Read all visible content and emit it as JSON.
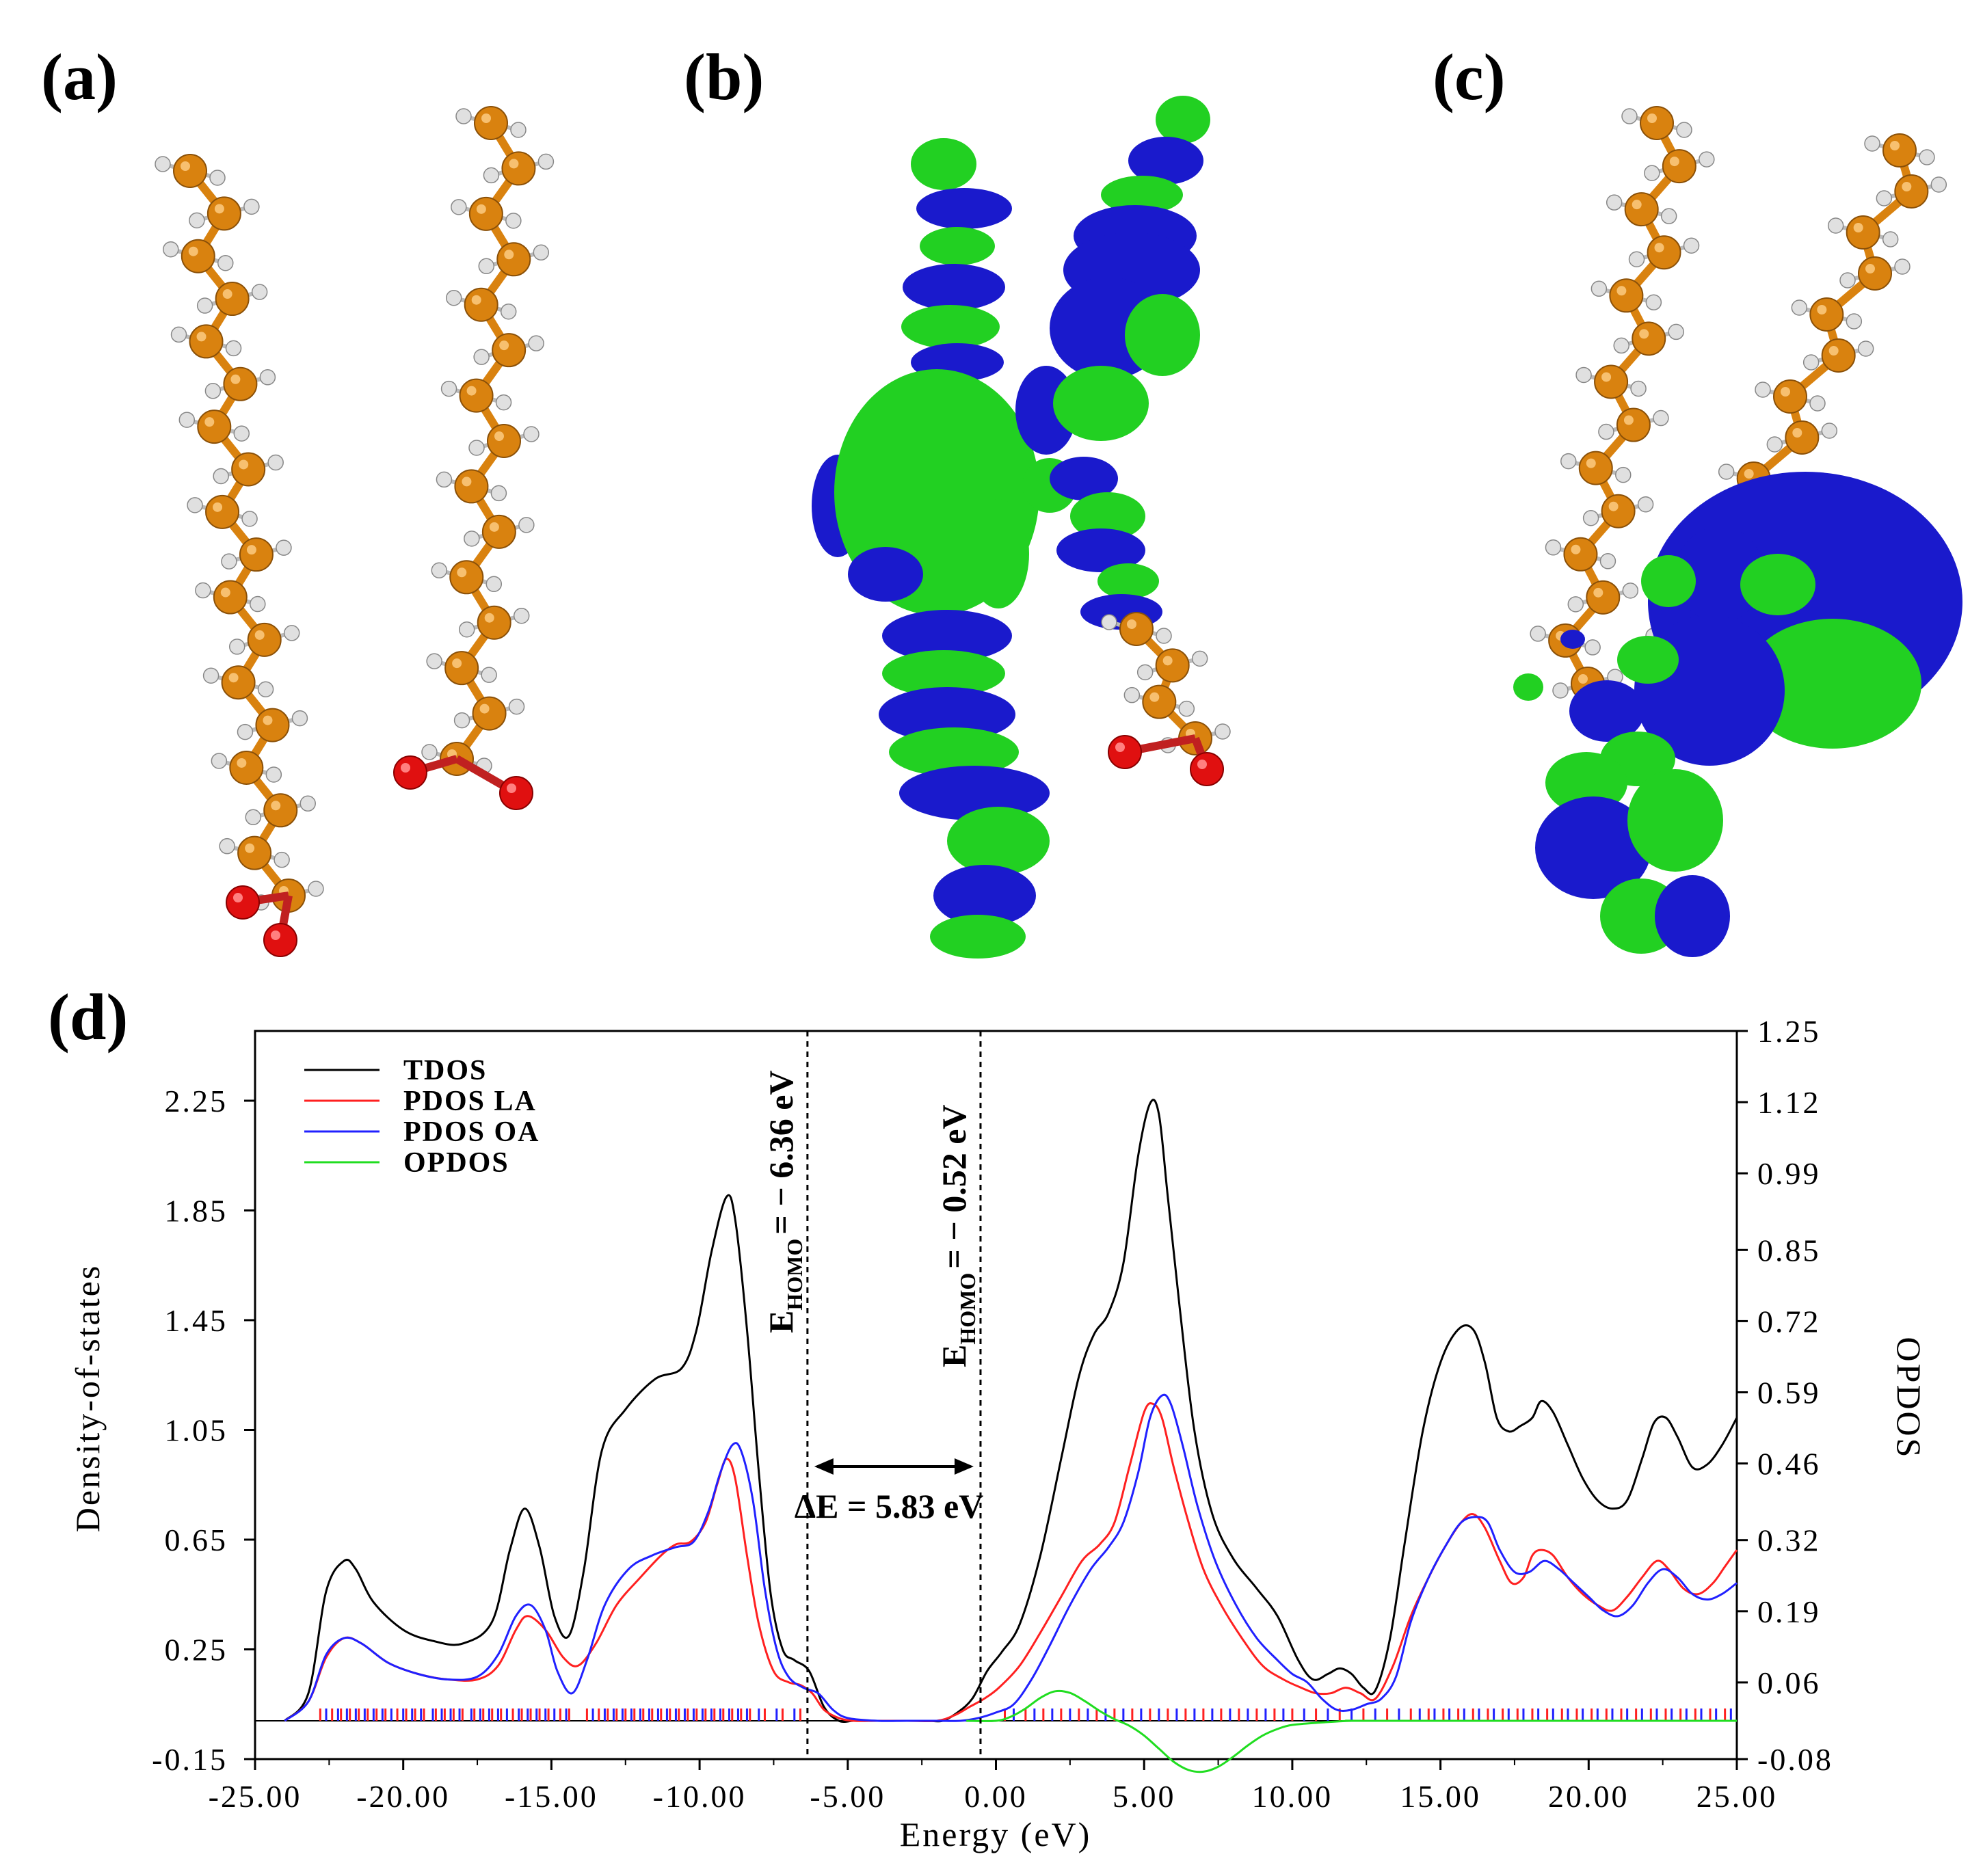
{
  "panels": {
    "a": {
      "label": "(a)"
    },
    "b": {
      "label": "(b)"
    },
    "c": {
      "label": "(c)"
    },
    "d": {
      "label": "(d)"
    }
  },
  "colors": {
    "carbon": "#d9820f",
    "hydrogen": "#e0e0e0",
    "oxygen": "#e01010",
    "orbital_positive": "#22d022",
    "orbital_negative": "#1a1acc"
  },
  "chart_data": {
    "type": "line",
    "xlabel": "Energy (eV)",
    "ylabel": "Density-of-states",
    "y2label": "OPDOS",
    "xlim": [
      -25,
      25
    ],
    "ylim": [
      -0.15,
      2.55
    ],
    "y2lim": [
      -0.08,
      1.25
    ],
    "x_ticks": [
      "-25.00",
      "-20.00",
      "-15.00",
      "-10.00",
      "-5.00",
      "0.00",
      "5.00",
      "10.00",
      "15.00",
      "20.00",
      "25.00"
    ],
    "x_tick_values": [
      -25,
      -20,
      -15,
      -10,
      -5,
      0,
      5,
      10,
      15,
      20,
      25
    ],
    "y_ticks": [
      "-0.15",
      "0.25",
      "0.65",
      "1.05",
      "1.45",
      "1.85",
      "2.25"
    ],
    "y_tick_values": [
      -0.15,
      0.25,
      0.65,
      1.05,
      1.45,
      1.85,
      2.25
    ],
    "y2_ticks": [
      "-0.08",
      "0.06",
      "0.19",
      "0.32",
      "0.46",
      "0.59",
      "0.72",
      "0.85",
      "0.99",
      "1.12",
      "1.25"
    ],
    "y2_tick_values": [
      -0.08,
      0.06,
      0.19,
      0.32,
      0.46,
      0.59,
      0.72,
      0.85,
      0.99,
      1.12,
      1.25
    ],
    "legend": [
      "TDOS",
      "PDOS LA",
      "PDOS OA",
      "OPDOS"
    ],
    "legend_position": "top-left",
    "series": [
      {
        "name": "TDOS",
        "color": "#000000",
        "axis": "left",
        "x": [
          -24,
          -23.2,
          -22.6,
          -22,
          -21.6,
          -21,
          -20,
          -19,
          -18,
          -17,
          -16.4,
          -15.9,
          -15.4,
          -14.9,
          -14.4,
          -13.9,
          -13.3,
          -12.5,
          -11.5,
          -10.6,
          -10.1,
          -9.6,
          -9.1,
          -8.8,
          -8.4,
          -8.0,
          -7.6,
          -7.2,
          -6.8,
          -6.3,
          -5.8,
          -5.3,
          -4.8,
          -4.3,
          -3.8,
          -3.3,
          -2.8,
          -2.3,
          -1.8,
          -1.3,
          -0.8,
          -0.3,
          0.2,
          0.8,
          1.5,
          2.2,
          2.8,
          3.3,
          3.8,
          4.3,
          4.8,
          5.2,
          5.5,
          5.8,
          6.2,
          6.7,
          7.3,
          8.0,
          8.8,
          9.5,
          10.2,
          10.7,
          11.2,
          11.6,
          12.0,
          12.4,
          12.8,
          13.3,
          13.8,
          14.4,
          15.0,
          15.6,
          16.1,
          16.5,
          16.9,
          17.3,
          17.7,
          18.1,
          18.4,
          18.8,
          19.3,
          19.8,
          20.3,
          20.8,
          21.3,
          21.8,
          22.2,
          22.6,
          23.0,
          23.5,
          24.0,
          24.5,
          25.0
        ],
        "values": [
          0.0,
          0.1,
          0.47,
          0.58,
          0.55,
          0.43,
          0.33,
          0.29,
          0.28,
          0.36,
          0.62,
          0.77,
          0.63,
          0.38,
          0.31,
          0.55,
          0.98,
          1.13,
          1.24,
          1.28,
          1.42,
          1.7,
          1.9,
          1.82,
          1.42,
          0.9,
          0.46,
          0.26,
          0.22,
          0.18,
          0.05,
          0.0,
          0.0,
          0.0,
          0.0,
          0.0,
          0.0,
          0.0,
          0.0,
          0.03,
          0.08,
          0.18,
          0.25,
          0.35,
          0.6,
          0.95,
          1.25,
          1.4,
          1.48,
          1.66,
          2.05,
          2.24,
          2.2,
          1.9,
          1.5,
          1.05,
          0.75,
          0.59,
          0.48,
          0.38,
          0.22,
          0.15,
          0.17,
          0.19,
          0.17,
          0.12,
          0.11,
          0.3,
          0.65,
          1.05,
          1.3,
          1.42,
          1.42,
          1.3,
          1.1,
          1.05,
          1.07,
          1.1,
          1.16,
          1.12,
          1.0,
          0.88,
          0.8,
          0.77,
          0.8,
          0.95,
          1.08,
          1.1,
          1.03,
          0.92,
          0.93,
          1.0,
          1.1
        ]
      },
      {
        "name": "PDOS LA",
        "color": "#ff2020",
        "axis": "left",
        "x": [
          -24,
          -23.2,
          -22.6,
          -22,
          -21.4,
          -20.5,
          -19.5,
          -18.5,
          -17.5,
          -16.8,
          -16.2,
          -15.8,
          -15.2,
          -14.6,
          -14.1,
          -13.5,
          -12.8,
          -12,
          -11.3,
          -10.8,
          -10.3,
          -9.8,
          -9.4,
          -9.1,
          -8.8,
          -8.4,
          -8.0,
          -7.5,
          -7.0,
          -6.6,
          -6.2,
          -5.8,
          -5.3,
          -4.8,
          -4.0,
          -3.0,
          -2.0,
          -1.4,
          -0.9,
          -0.4,
          0.1,
          0.8,
          1.5,
          2.2,
          2.9,
          3.5,
          4.0,
          4.5,
          5.0,
          5.3,
          5.6,
          6.0,
          6.5,
          7.0,
          7.6,
          8.3,
          9.0,
          9.7,
          10.3,
          10.8,
          11.3,
          11.8,
          12.3,
          12.8,
          13.4,
          14.0,
          14.6,
          15.2,
          15.7,
          16.1,
          16.5,
          17.0,
          17.4,
          17.8,
          18.1,
          18.4,
          18.8,
          19.3,
          19.8,
          20.3,
          20.8,
          21.3,
          21.8,
          22.3,
          22.7,
          23.2,
          23.7,
          24.2,
          24.6,
          25.0
        ],
        "values": [
          0.0,
          0.07,
          0.23,
          0.3,
          0.28,
          0.21,
          0.17,
          0.15,
          0.15,
          0.2,
          0.33,
          0.38,
          0.33,
          0.23,
          0.2,
          0.28,
          0.42,
          0.52,
          0.6,
          0.64,
          0.65,
          0.72,
          0.86,
          0.95,
          0.88,
          0.6,
          0.35,
          0.18,
          0.14,
          0.13,
          0.1,
          0.04,
          0.01,
          0.0,
          0.0,
          0.0,
          0.0,
          0.02,
          0.05,
          0.08,
          0.12,
          0.2,
          0.32,
          0.45,
          0.58,
          0.64,
          0.72,
          0.92,
          1.12,
          1.15,
          1.1,
          0.92,
          0.72,
          0.55,
          0.42,
          0.3,
          0.2,
          0.15,
          0.12,
          0.1,
          0.1,
          0.12,
          0.1,
          0.08,
          0.2,
          0.38,
          0.52,
          0.64,
          0.72,
          0.75,
          0.7,
          0.58,
          0.5,
          0.52,
          0.6,
          0.62,
          0.6,
          0.52,
          0.46,
          0.42,
          0.4,
          0.45,
          0.52,
          0.58,
          0.55,
          0.48,
          0.46,
          0.5,
          0.56,
          0.62
        ]
      },
      {
        "name": "PDOS OA",
        "color": "#2020ff",
        "axis": "left",
        "x": [
          -24,
          -23.2,
          -22.6,
          -22,
          -21.4,
          -20.5,
          -19.5,
          -18.5,
          -17.5,
          -16.8,
          -16.2,
          -15.7,
          -15.2,
          -14.8,
          -14.3,
          -13.8,
          -13.2,
          -12.4,
          -11.6,
          -10.8,
          -10.2,
          -9.7,
          -9.3,
          -8.9,
          -8.6,
          -8.2,
          -7.8,
          -7.4,
          -7.0,
          -6.5,
          -6.0,
          -5.5,
          -5.0,
          -4.0,
          -3.0,
          -2.0,
          -1.2,
          -0.6,
          0.0,
          0.6,
          1.2,
          1.8,
          2.5,
          3.2,
          3.8,
          4.3,
          4.8,
          5.2,
          5.6,
          5.9,
          6.3,
          6.8,
          7.4,
          8.1,
          8.8,
          9.5,
          10.0,
          10.5,
          11.0,
          11.5,
          12.0,
          12.5,
          13.0,
          13.5,
          14.0,
          14.6,
          15.2,
          15.7,
          16.2,
          16.6,
          17.0,
          17.5,
          18.0,
          18.5,
          19.0,
          19.5,
          20.0,
          20.5,
          21.0,
          21.5,
          22.0,
          22.5,
          23.0,
          23.5,
          24.0,
          24.5,
          25.0
        ],
        "values": [
          0.0,
          0.07,
          0.24,
          0.3,
          0.28,
          0.21,
          0.17,
          0.15,
          0.16,
          0.24,
          0.38,
          0.42,
          0.33,
          0.18,
          0.1,
          0.22,
          0.42,
          0.55,
          0.6,
          0.63,
          0.65,
          0.76,
          0.9,
          1.0,
          0.98,
          0.8,
          0.48,
          0.26,
          0.16,
          0.12,
          0.1,
          0.04,
          0.01,
          0.0,
          0.0,
          0.0,
          0.0,
          0.01,
          0.03,
          0.06,
          0.15,
          0.27,
          0.42,
          0.55,
          0.63,
          0.72,
          0.9,
          1.1,
          1.18,
          1.15,
          1.0,
          0.78,
          0.58,
          0.42,
          0.3,
          0.22,
          0.17,
          0.14,
          0.08,
          0.04,
          0.04,
          0.06,
          0.08,
          0.16,
          0.36,
          0.52,
          0.64,
          0.72,
          0.74,
          0.72,
          0.62,
          0.54,
          0.54,
          0.58,
          0.55,
          0.5,
          0.45,
          0.4,
          0.38,
          0.42,
          0.5,
          0.55,
          0.52,
          0.46,
          0.44,
          0.46,
          0.5
        ]
      },
      {
        "name": "OPDOS",
        "color": "#20dd20",
        "axis": "right",
        "x": [
          -1,
          0,
          0.5,
          1.0,
          1.5,
          2.0,
          2.5,
          3.0,
          3.5,
          4.0,
          4.5,
          5.0,
          5.5,
          6.0,
          6.5,
          7.0,
          7.5,
          8.0,
          8.5,
          9.0,
          9.5,
          10.0,
          11.0,
          12.0,
          13.0,
          25.0
        ],
        "values": [
          0.0,
          0.0,
          0.005,
          0.015,
          0.028,
          0.036,
          0.034,
          0.024,
          0.012,
          0.002,
          -0.006,
          -0.018,
          -0.034,
          -0.05,
          -0.06,
          -0.062,
          -0.056,
          -0.044,
          -0.03,
          -0.018,
          -0.01,
          -0.005,
          -0.002,
          0.0,
          0.0,
          0.0
        ]
      }
    ],
    "markers": [
      {
        "x": -6.36,
        "label": "E",
        "sub": "HOMO",
        "text": "= − 6.36 eV"
      },
      {
        "x": -0.52,
        "label": "E",
        "sub": "HOMO",
        "text": "= − 0.52 eV"
      }
    ],
    "gap_annotation": {
      "from": -6.36,
      "to": -0.52,
      "text": "ΔE = 5.83 eV"
    },
    "rugs": [
      {
        "color": "#ff2020",
        "x": [
          -22.8,
          -22.4,
          -22.1,
          -21.8,
          -21.5,
          -21.2,
          -20.9,
          -20.6,
          -20.2,
          -19.9,
          -19.6,
          -19.3,
          -18.9,
          -18.6,
          -18.3,
          -18.0,
          -17.6,
          -17.3,
          -17.0,
          -16.7,
          -16.3,
          -16.0,
          -15.7,
          -15.4,
          -15.1,
          -14.7,
          -14.4,
          -13.8,
          -13.4,
          -13.1,
          -12.8,
          -12.5,
          -12.2,
          -11.9,
          -11.6,
          -11.3,
          -11.0,
          -10.7,
          -10.4,
          -10.1,
          -9.8,
          -9.5,
          -9.2,
          -8.9,
          -8.6,
          -8.3,
          -7.8,
          -7.2,
          -6.6,
          0.3,
          1.0,
          1.6,
          2.2,
          2.8,
          3.4,
          4.0,
          4.6,
          5.2,
          5.8,
          6.4,
          7.0,
          7.6,
          8.2,
          8.8,
          9.4,
          10.0,
          10.8,
          11.6,
          12.4,
          13.2,
          14.0,
          14.6,
          15.1,
          15.6,
          16.1,
          16.6,
          17.1,
          17.6,
          18.1,
          18.6,
          19.1,
          19.6,
          20.1,
          20.6,
          21.1,
          21.6,
          22.1,
          22.6,
          23.1,
          23.6,
          24.1,
          24.6
        ]
      },
      {
        "color": "#2020ff",
        "x": [
          -22.6,
          -22.2,
          -21.9,
          -21.6,
          -21.3,
          -21.0,
          -20.7,
          -20.4,
          -20.0,
          -19.7,
          -19.4,
          -19.0,
          -18.7,
          -18.4,
          -18.1,
          -17.7,
          -17.4,
          -17.1,
          -16.8,
          -16.5,
          -16.1,
          -15.8,
          -15.5,
          -15.2,
          -14.9,
          -14.5,
          -13.6,
          -13.2,
          -12.9,
          -12.6,
          -12.3,
          -12.0,
          -11.7,
          -11.4,
          -11.1,
          -10.8,
          -10.5,
          -10.2,
          -9.9,
          -9.6,
          -9.3,
          -9.0,
          -8.7,
          -8.4,
          -8.0,
          -7.4,
          -6.8,
          0.6,
          1.3,
          1.9,
          2.5,
          3.1,
          3.7,
          4.3,
          4.9,
          5.5,
          6.1,
          6.7,
          7.3,
          7.9,
          8.5,
          9.1,
          9.7,
          10.4,
          11.2,
          12.0,
          12.8,
          13.6,
          14.3,
          14.8,
          15.3,
          15.8,
          16.3,
          16.8,
          17.3,
          17.8,
          18.3,
          18.8,
          19.3,
          19.8,
          20.3,
          20.8,
          21.3,
          21.8,
          22.3,
          22.8,
          23.3,
          23.8,
          24.3,
          24.8
        ]
      }
    ]
  }
}
